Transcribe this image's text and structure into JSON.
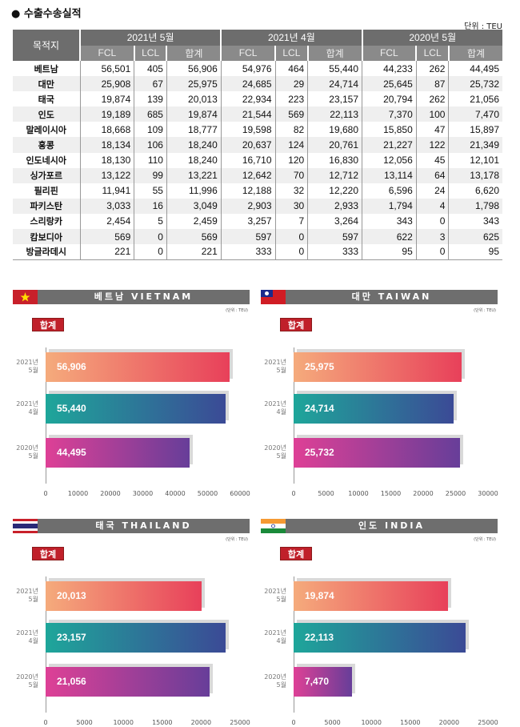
{
  "title": "● 수출수송실적",
  "unit": "단위 : TEU",
  "table": {
    "dest_header": "목적지",
    "periods": [
      "2021년 5월",
      "2021년 4월",
      "2020년 5월"
    ],
    "subheaders": [
      "FCL",
      "LCL",
      "합계"
    ],
    "rows": [
      [
        "베트남",
        "56,501",
        "405",
        "56,906",
        "54,976",
        "464",
        "55,440",
        "44,233",
        "262",
        "44,495"
      ],
      [
        "대만",
        "25,908",
        "67",
        "25,975",
        "24,685",
        "29",
        "24,714",
        "25,645",
        "87",
        "25,732"
      ],
      [
        "태국",
        "19,874",
        "139",
        "20,013",
        "22,934",
        "223",
        "23,157",
        "20,794",
        "262",
        "21,056"
      ],
      [
        "인도",
        "19,189",
        "685",
        "19,874",
        "21,544",
        "569",
        "22,113",
        "7,370",
        "100",
        "7,470"
      ],
      [
        "말레이시아",
        "18,668",
        "109",
        "18,777",
        "19,598",
        "82",
        "19,680",
        "15,850",
        "47",
        "15,897"
      ],
      [
        "홍콩",
        "18,134",
        "106",
        "18,240",
        "20,637",
        "124",
        "20,761",
        "21,227",
        "122",
        "21,349"
      ],
      [
        "인도네시아",
        "18,130",
        "110",
        "18,240",
        "16,710",
        "120",
        "16,830",
        "12,056",
        "45",
        "12,101"
      ],
      [
        "싱가포르",
        "13,122",
        "99",
        "13,221",
        "12,642",
        "70",
        "12,712",
        "13,114",
        "64",
        "13,178"
      ],
      [
        "필리핀",
        "11,941",
        "55",
        "11,996",
        "12,188",
        "32",
        "12,220",
        "6,596",
        "24",
        "6,620"
      ],
      [
        "파키스탄",
        "3,033",
        "16",
        "3,049",
        "2,903",
        "30",
        "2,933",
        "1,794",
        "4",
        "1,798"
      ],
      [
        "스리랑카",
        "2,454",
        "5",
        "2,459",
        "3,257",
        "7",
        "3,264",
        "343",
        "0",
        "343"
      ],
      [
        "캄보디아",
        "569",
        "0",
        "569",
        "597",
        "0",
        "597",
        "622",
        "3",
        "625"
      ],
      [
        "방글라데시",
        "221",
        "0",
        "221",
        "333",
        "0",
        "333",
        "95",
        "0",
        "95"
      ]
    ]
  },
  "colors": {
    "grad1": [
      "#f5ab7c",
      "#e8405a"
    ],
    "grad2": [
      "#1ea69a",
      "#3b4a96"
    ],
    "grad3": [
      "#de4096",
      "#673e99"
    ],
    "badge": "#c0202a"
  },
  "chart_data": [
    {
      "type": "bar",
      "orientation": "horizontal",
      "title": "베트남 VIETNAM",
      "flag": "vietnam-flag",
      "unit": "(단위 : TEU)",
      "badge": "합계",
      "categories": [
        "2021년\n5월",
        "2021년\n4월",
        "2020년\n5월"
      ],
      "values": [
        56906,
        55440,
        44495
      ],
      "labels": [
        "56,906",
        "55,440",
        "44,495"
      ],
      "xlim": [
        0,
        60000
      ],
      "xticks": [
        "0",
        "10000",
        "20000",
        "30000",
        "40000",
        "50000",
        "60000"
      ]
    },
    {
      "type": "bar",
      "orientation": "horizontal",
      "title": "대만 TAIWAN",
      "flag": "taiwan-flag",
      "unit": "(단위 : TEU)",
      "badge": "합계",
      "categories": [
        "2021년\n5월",
        "2021년\n4월",
        "2020년\n5월"
      ],
      "values": [
        25975,
        24714,
        25732
      ],
      "labels": [
        "25,975",
        "24,714",
        "25,732"
      ],
      "xlim": [
        0,
        30000
      ],
      "xticks": [
        "0",
        "5000",
        "10000",
        "15000",
        "20000",
        "25000",
        "30000"
      ]
    },
    {
      "type": "bar",
      "orientation": "horizontal",
      "title": "태국 THAILAND",
      "flag": "thailand-flag",
      "unit": "(단위 : TEU)",
      "badge": "합계",
      "categories": [
        "2021년\n5월",
        "2021년\n4월",
        "2020년\n5월"
      ],
      "values": [
        20013,
        23157,
        21056
      ],
      "labels": [
        "20,013",
        "23,157",
        "21,056"
      ],
      "xlim": [
        0,
        25000
      ],
      "xticks": [
        "0",
        "5000",
        "10000",
        "15000",
        "20000",
        "25000"
      ]
    },
    {
      "type": "bar",
      "orientation": "horizontal",
      "title": "인도 INDIA",
      "flag": "india-flag",
      "unit": "(단위 : TEU)",
      "badge": "합계",
      "categories": [
        "2021년\n5월",
        "2021년\n4월",
        "2020년\n5월"
      ],
      "values": [
        19874,
        22113,
        7470
      ],
      "labels": [
        "19,874",
        "22,113",
        "7,470"
      ],
      "xlim": [
        0,
        25000
      ],
      "xticks": [
        "0",
        "5000",
        "10000",
        "15000",
        "20000",
        "25000"
      ]
    }
  ]
}
